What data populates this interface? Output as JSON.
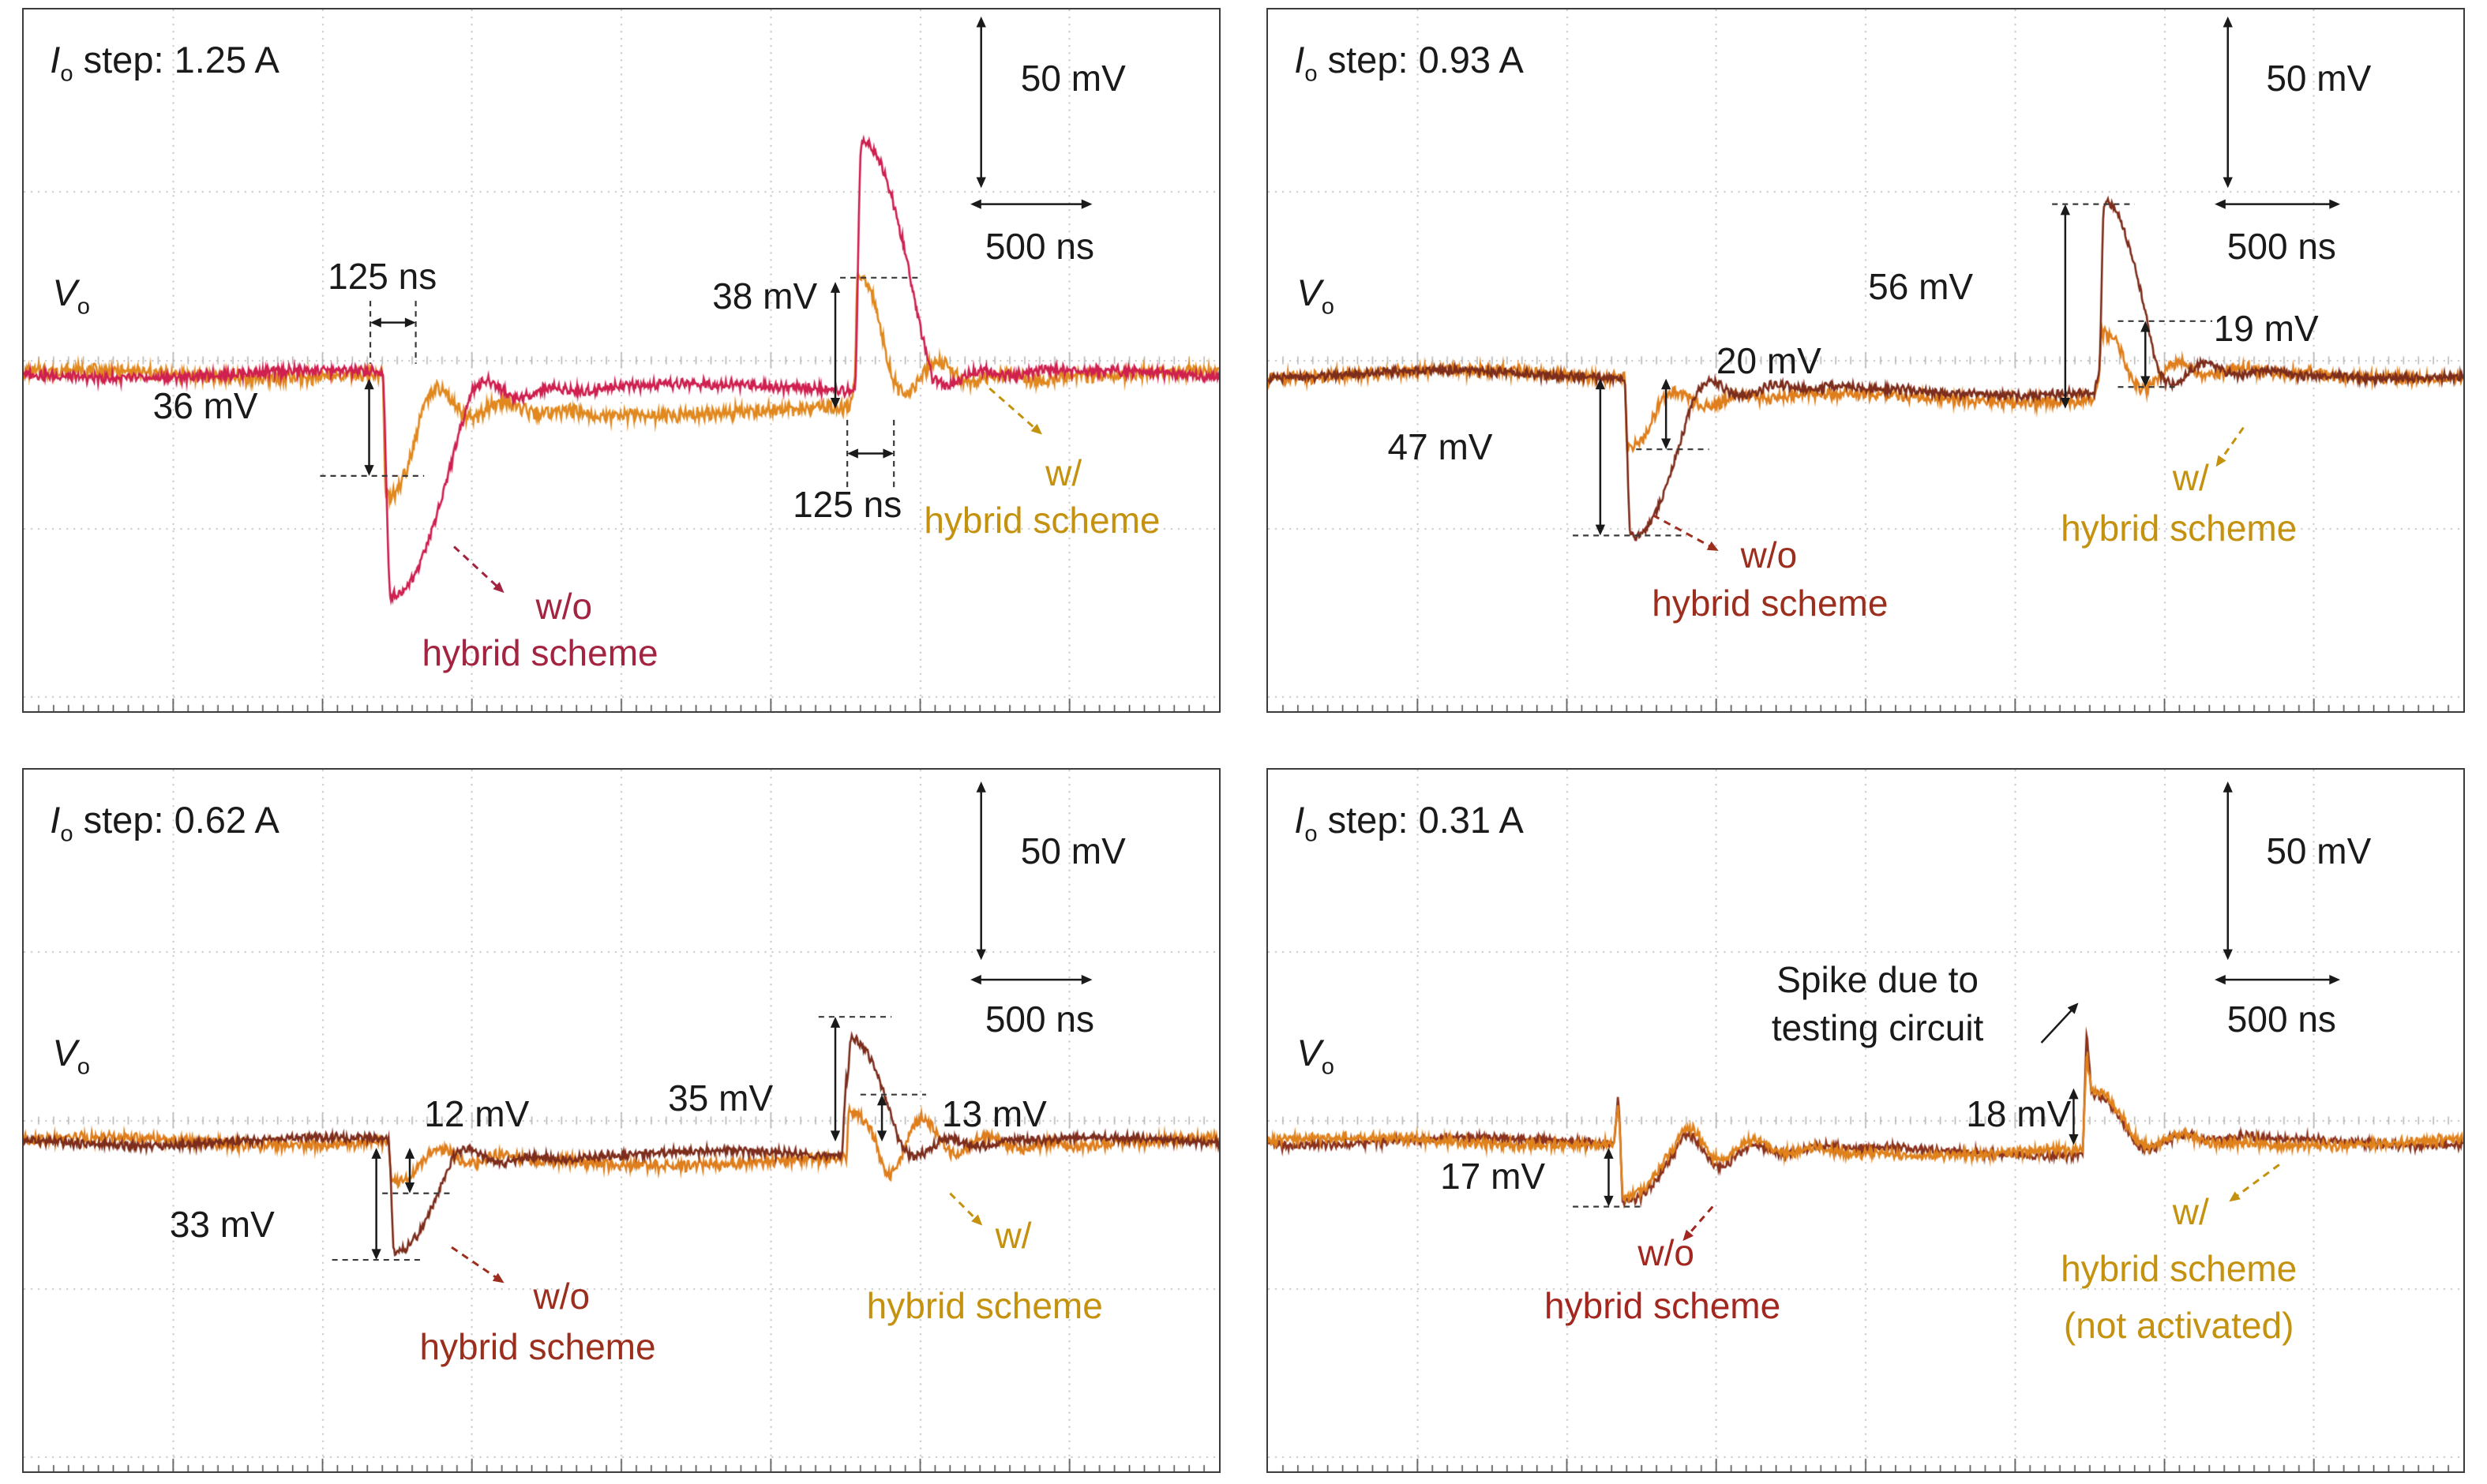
{
  "figure": {
    "bg": "#ffffff",
    "grid_color": "#c6c6c6",
    "border_color": "#3c3c3c",
    "tick_color": "#444444",
    "accent_gold": "#c4920f",
    "divisions_x": 8,
    "divisions_y": 4
  },
  "chart_data": [
    {
      "type": "line",
      "title": "Io step: 1.25 A",
      "io_step": {
        "sym": "I",
        "sub": "o",
        "rest": " step: 1.25 A"
      },
      "y_label": {
        "sym": "V",
        "sub": "o"
      },
      "x_per_div": "500 ns",
      "y_per_div": "50 mV",
      "wave": {
        "baseline_pct": 52.0,
        "e1_pct": 30.0,
        "e2_pct": 69.5
      },
      "series": [
        {
          "name": "w/ hybrid scheme",
          "color": "#e1891f",
          "label_color": "#c4920f",
          "undershoot_mV": 36,
          "overshoot_mV": 38,
          "under_w": 3.4,
          "over_w": 3.0,
          "mid_mV": -11,
          "noise_mV": 1.6,
          "ring1_mV": 7,
          "ring2_mV": -8,
          "spike1_mV": 0,
          "spike2_mV": 8,
          "seed": 7
        },
        {
          "name": "w/o hybrid scheme",
          "color": "#cf2050",
          "label_color": "#a32441",
          "undershoot_mV": 66,
          "overshoot_mV": 74,
          "under_w": 7.5,
          "over_w": 6.5,
          "mid_mV": -4,
          "noise_mV": 1.2,
          "ring1_mV": 4,
          "ring2_mV": -3,
          "spike1_mV": 0,
          "spike2_mV": 0,
          "seed": 3
        }
      ],
      "labels": [
        {
          "t": "125 ns",
          "x": 30.0,
          "y": 38.0
        },
        {
          "t": "36 mV",
          "x": 15.2,
          "y": 56.5
        },
        {
          "t": "38 mV",
          "x": 62.0,
          "y": 40.8
        },
        {
          "t": "125 ns",
          "x": 68.9,
          "y": 70.5
        },
        {
          "t": "50 mV",
          "x": 87.8,
          "y": 9.8
        },
        {
          "t": "500 ns",
          "x": 85.0,
          "y": 33.7
        },
        {
          "t": "w/",
          "x": 87.0,
          "y": 66.0,
          "c": "#c4920f"
        },
        {
          "t": "hybrid scheme",
          "x": 85.2,
          "y": 72.8,
          "c": "#c4920f"
        },
        {
          "t": "w/o",
          "x": 45.2,
          "y": 85.0,
          "c": "#a32441"
        },
        {
          "t": "hybrid scheme",
          "x": 43.2,
          "y": 91.7,
          "c": "#a32441"
        }
      ],
      "marks": [
        {
          "type": "dl",
          "x1": 29.0,
          "y1": 41.5,
          "x2": 29.0,
          "y2": 50.5
        },
        {
          "type": "dl",
          "x1": 32.8,
          "y1": 41.5,
          "x2": 32.8,
          "y2": 50.5
        },
        {
          "type": "mh",
          "x1": 29.0,
          "x2": 32.8,
          "y": 44.6
        },
        {
          "type": "mv",
          "x": 28.9,
          "y1": 52.6,
          "y2": 66.5
        },
        {
          "type": "dl",
          "x1": 24.8,
          "y1": 66.5,
          "x2": 33.5,
          "y2": 66.5
        },
        {
          "type": "mv",
          "x": 67.9,
          "y1": 38.8,
          "y2": 56.9
        },
        {
          "type": "dl",
          "x1": 68.3,
          "y1": 38.2,
          "x2": 74.8,
          "y2": 38.2
        },
        {
          "type": "dl",
          "x1": 68.9,
          "y1": 58.5,
          "x2": 68.9,
          "y2": 68.5
        },
        {
          "type": "dl",
          "x1": 72.8,
          "y1": 58.5,
          "x2": 72.8,
          "y2": 68.5
        },
        {
          "type": "mh",
          "x1": 68.9,
          "x2": 72.8,
          "y": 63.3
        },
        {
          "type": "mv",
          "x": 80.1,
          "y1": 0.9,
          "y2": 25.4
        },
        {
          "type": "mh",
          "x1": 79.2,
          "x2": 89.4,
          "y": 27.7
        },
        {
          "type": "leader",
          "x1": 80.8,
          "y1": 54.0,
          "x2": 85.2,
          "y2": 60.6,
          "c": "#c4920f"
        },
        {
          "type": "leader",
          "x1": 36.0,
          "y1": 76.6,
          "x2": 40.2,
          "y2": 83.2,
          "c": "#a32441"
        }
      ]
    },
    {
      "type": "line",
      "title": "Io step: 0.93 A",
      "io_step": {
        "sym": "I",
        "sub": "o",
        "rest": " step: 0.93 A"
      },
      "y_label": {
        "sym": "V",
        "sub": "o"
      },
      "x_per_div": "500 ns",
      "y_per_div": "50 mV",
      "wave": {
        "baseline_pct": 52.0,
        "e1_pct": 29.8,
        "e2_pct": 69.5
      },
      "series": [
        {
          "name": "w/ hybrid scheme",
          "color": "#df7e1c",
          "label_color": "#c4920f",
          "undershoot_mV": 20,
          "overshoot_mV": 19,
          "under_w": 3.0,
          "over_w": 2.6,
          "mid_mV": -7,
          "noise_mV": 1.4,
          "ring1_mV": 4,
          "ring2_mV": -6,
          "spike1_mV": 0,
          "spike2_mV": 6,
          "seed": 11
        },
        {
          "name": "w/o hybrid scheme",
          "color": "#7d2d1c",
          "label_color": "#9c2e1e",
          "undershoot_mV": 47,
          "overshoot_mV": 56,
          "under_w": 6.0,
          "over_w": 5.0,
          "mid_mV": -5,
          "noise_mV": 1.0,
          "ring1_mV": 4,
          "ring2_mV": -5,
          "spike1_mV": 0,
          "spike2_mV": 6,
          "seed": 5
        }
      ],
      "labels": [
        {
          "t": "56 mV",
          "x": 54.6,
          "y": 39.5
        },
        {
          "t": "20 mV",
          "x": 41.9,
          "y": 50.0
        },
        {
          "t": "47 mV",
          "x": 14.4,
          "y": 62.3
        },
        {
          "t": "19 mV",
          "x": 83.5,
          "y": 45.5
        },
        {
          "t": "50 mV",
          "x": 87.9,
          "y": 9.8
        },
        {
          "t": "500 ns",
          "x": 84.8,
          "y": 33.7
        },
        {
          "t": "w/o",
          "x": 41.9,
          "y": 77.7,
          "c": "#9c2e1e"
        },
        {
          "t": "hybrid scheme",
          "x": 42.0,
          "y": 84.6,
          "c": "#9c2e1e"
        },
        {
          "t": "w/",
          "x": 77.2,
          "y": 66.7,
          "c": "#c4920f"
        },
        {
          "t": "hybrid scheme",
          "x": 76.2,
          "y": 73.9,
          "c": "#c4920f"
        }
      ],
      "marks": [
        {
          "type": "mv",
          "x": 27.8,
          "y1": 52.6,
          "y2": 75.0
        },
        {
          "type": "dl",
          "x1": 25.5,
          "y1": 75.0,
          "x2": 35.0,
          "y2": 75.0
        },
        {
          "type": "mv",
          "x": 33.3,
          "y1": 52.6,
          "y2": 62.7
        },
        {
          "type": "dl",
          "x1": 30.8,
          "y1": 62.7,
          "x2": 36.9,
          "y2": 62.7
        },
        {
          "type": "mv",
          "x": 66.7,
          "y1": 27.7,
          "y2": 56.9
        },
        {
          "type": "dl",
          "x1": 65.6,
          "y1": 27.7,
          "x2": 72.5,
          "y2": 27.7
        },
        {
          "type": "mv",
          "x": 73.4,
          "y1": 44.4,
          "y2": 53.8
        },
        {
          "type": "dl",
          "x1": 71.1,
          "y1": 44.4,
          "x2": 79.0,
          "y2": 44.4
        },
        {
          "type": "dl",
          "x1": 71.1,
          "y1": 53.8,
          "x2": 76.0,
          "y2": 53.8
        },
        {
          "type": "mv",
          "x": 80.3,
          "y1": 0.9,
          "y2": 25.4
        },
        {
          "type": "mh",
          "x1": 79.2,
          "x2": 89.7,
          "y": 27.7
        },
        {
          "type": "leader",
          "x1": 32.2,
          "y1": 72.1,
          "x2": 37.7,
          "y2": 77.2,
          "c": "#9c2e1e"
        },
        {
          "type": "leader",
          "x1": 81.6,
          "y1": 59.6,
          "x2": 79.3,
          "y2": 65.2,
          "c": "#c4920f"
        }
      ]
    },
    {
      "type": "line",
      "title": "Io step: 0.62 A",
      "io_step": {
        "sym": "I",
        "sub": "o",
        "rest": " step: 0.62 A"
      },
      "y_label": {
        "sym": "V",
        "sub": "o"
      },
      "x_per_div": "500 ns",
      "y_per_div": "50 mV",
      "wave": {
        "baseline_pct": 53.0,
        "e1_pct": 30.5,
        "e2_pct": 68.8
      },
      "series": [
        {
          "name": "w/ hybrid scheme",
          "color": "#df7e1c",
          "label_color": "#c4920f",
          "undershoot_mV": 12,
          "overshoot_mV": 13,
          "under_w": 3.0,
          "over_w": 2.4,
          "mid_mV": -6,
          "noise_mV": 1.3,
          "ring1_mV": 4,
          "ring2_mV": -14,
          "spike1_mV": 0,
          "spike2_mV": 0,
          "seed": 13
        },
        {
          "name": "w/o hybrid scheme",
          "color": "#7d2d1c",
          "label_color": "#9c2e1e",
          "undershoot_mV": 33,
          "overshoot_mV": 35,
          "under_w": 5.5,
          "over_w": 4.6,
          "mid_mV": -4,
          "noise_mV": 1.0,
          "ring1_mV": 3,
          "ring2_mV": -4,
          "spike1_mV": 0,
          "spike2_mV": 24,
          "seed": 9
        }
      ],
      "labels": [
        {
          "t": "12 mV",
          "x": 37.9,
          "y": 49.1
        },
        {
          "t": "35 mV",
          "x": 58.3,
          "y": 46.8
        },
        {
          "t": "13 mV",
          "x": 81.2,
          "y": 49.1
        },
        {
          "t": "33 mV",
          "x": 16.6,
          "y": 64.8
        },
        {
          "t": "50 mV",
          "x": 87.8,
          "y": 11.6
        },
        {
          "t": "500 ns",
          "x": 85.0,
          "y": 35.6
        },
        {
          "t": "w/o",
          "x": 45.0,
          "y": 75.0,
          "c": "#9c2e1e"
        },
        {
          "t": "hybrid scheme",
          "x": 43.0,
          "y": 82.2,
          "c": "#9c2e1e"
        },
        {
          "t": "w/",
          "x": 82.8,
          "y": 66.4,
          "c": "#c4920f"
        },
        {
          "t": "hybrid scheme",
          "x": 80.4,
          "y": 76.4,
          "c": "#c4920f"
        }
      ],
      "marks": [
        {
          "type": "mv",
          "x": 29.5,
          "y1": 53.9,
          "y2": 69.9
        },
        {
          "type": "dl",
          "x1": 25.8,
          "y1": 69.9,
          "x2": 33.2,
          "y2": 69.9
        },
        {
          "type": "mv",
          "x": 32.3,
          "y1": 53.9,
          "y2": 60.4
        },
        {
          "type": "dl",
          "x1": 30.0,
          "y1": 60.4,
          "x2": 36.0,
          "y2": 60.4
        },
        {
          "type": "mv",
          "x": 67.9,
          "y1": 35.2,
          "y2": 53.0
        },
        {
          "type": "dl",
          "x1": 66.5,
          "y1": 35.2,
          "x2": 72.6,
          "y2": 35.2
        },
        {
          "type": "mv",
          "x": 71.8,
          "y1": 46.3,
          "y2": 53.0
        },
        {
          "type": "dl",
          "x1": 70.0,
          "y1": 46.3,
          "x2": 75.5,
          "y2": 46.3
        },
        {
          "type": "mv",
          "x": 80.1,
          "y1": 1.6,
          "y2": 27.1
        },
        {
          "type": "mh",
          "x1": 79.2,
          "x2": 89.4,
          "y": 29.9
        },
        {
          "type": "leader",
          "x1": 35.8,
          "y1": 68.1,
          "x2": 40.2,
          "y2": 73.2,
          "c": "#9c2e1e"
        },
        {
          "type": "leader",
          "x1": 77.5,
          "y1": 60.4,
          "x2": 80.2,
          "y2": 65.0,
          "c": "#c4920f"
        }
      ]
    },
    {
      "type": "line",
      "title": "Io step: 0.31 A",
      "io_step": {
        "sym": "I",
        "sub": "o",
        "rest": " step: 0.31 A"
      },
      "y_label": {
        "sym": "V",
        "sub": "o"
      },
      "x_per_div": "500 ns",
      "y_per_div": "50 mV",
      "note": "Spike due to testing circuit",
      "wave": {
        "baseline_pct": 53.0,
        "e1_pct": 29.3,
        "e2_pct": 68.5
      },
      "series": [
        {
          "name": "w/o hybrid scheme",
          "color": "#8a321e",
          "label_color": "#a3261f",
          "undershoot_mV": 17,
          "overshoot_mV": 18,
          "under_w": 4.6,
          "over_w": 4.0,
          "mid_mV": -3,
          "noise_mV": 1.0,
          "ring1_mV": 8,
          "ring2_mV": -3,
          "spike1_mV": 15,
          "spike2_mV": 38,
          "seed": 17
        },
        {
          "name": "w/ hybrid scheme (not activated)",
          "color": "#e0821c",
          "label_color": "#c4920f",
          "undershoot_mV": 16,
          "overshoot_mV": 17,
          "under_w": 4.6,
          "over_w": 4.0,
          "mid_mV": -3,
          "noise_mV": 1.2,
          "ring1_mV": 8,
          "ring2_mV": -3,
          "spike1_mV": 12,
          "spike2_mV": 30,
          "seed": 19
        }
      ],
      "labels": [
        {
          "t": "Spike due to",
          "x": 51.0,
          "y": 29.9
        },
        {
          "t": "testing circuit",
          "x": 51.0,
          "y": 36.8
        },
        {
          "t": "18 mV",
          "x": 62.8,
          "y": 49.1
        },
        {
          "t": "17 mV",
          "x": 18.8,
          "y": 57.9
        },
        {
          "t": "50 mV",
          "x": 87.9,
          "y": 11.6
        },
        {
          "t": "500 ns",
          "x": 84.8,
          "y": 35.6
        },
        {
          "t": "w/o",
          "x": 33.3,
          "y": 68.8,
          "c": "#a3261f"
        },
        {
          "t": "hybrid scheme",
          "x": 33.0,
          "y": 76.4,
          "c": "#a3261f"
        },
        {
          "t": "w/",
          "x": 77.2,
          "y": 63.0,
          "c": "#c4920f"
        },
        {
          "t": "hybrid scheme",
          "x": 76.2,
          "y": 71.1,
          "c": "#c4920f"
        },
        {
          "t": "(not activated)",
          "x": 76.2,
          "y": 79.2,
          "c": "#c4920f"
        }
      ],
      "marks": [
        {
          "type": "ptr",
          "x1": 64.7,
          "y1": 38.9,
          "x2": 67.8,
          "y2": 33.2,
          "c": "#1a1a1a"
        },
        {
          "type": "mv",
          "x": 67.4,
          "y1": 45.4,
          "y2": 53.5
        },
        {
          "type": "mv",
          "x": 28.5,
          "y1": 53.9,
          "y2": 62.3
        },
        {
          "type": "dl",
          "x1": 25.5,
          "y1": 62.3,
          "x2": 31.5,
          "y2": 62.3
        },
        {
          "type": "mv",
          "x": 80.3,
          "y1": 1.6,
          "y2": 27.1
        },
        {
          "type": "mh",
          "x1": 79.2,
          "x2": 89.7,
          "y": 29.9
        },
        {
          "type": "leader",
          "x1": 37.2,
          "y1": 62.3,
          "x2": 34.7,
          "y2": 67.2,
          "c": "#a3261f"
        },
        {
          "type": "leader",
          "x1": 84.6,
          "y1": 56.3,
          "x2": 80.4,
          "y2": 61.6,
          "c": "#c4920f"
        }
      ]
    }
  ]
}
